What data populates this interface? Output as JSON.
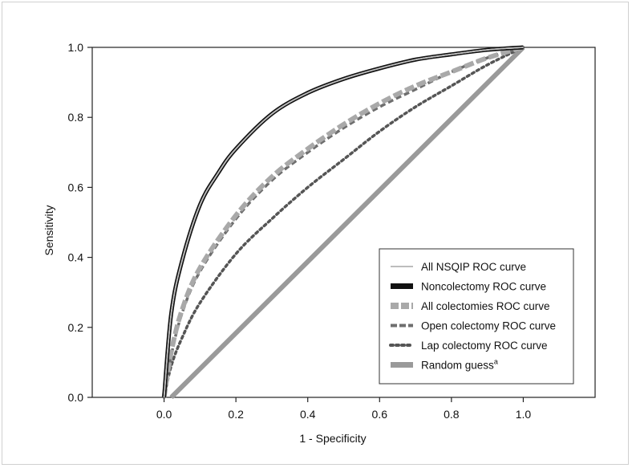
{
  "chart_data": {
    "type": "line",
    "xlabel": "1 - Specificity",
    "ylabel": "Sensitivity",
    "xlim": [
      -0.2,
      1.2
    ],
    "ylim": [
      0.0,
      1.0
    ],
    "xticks": [
      "0.0",
      "0.2",
      "0.4",
      "0.6",
      "0.8",
      "1.0"
    ],
    "yticks": [
      "0.0",
      "0.2",
      "0.4",
      "0.6",
      "0.8",
      "1.0"
    ],
    "legend_position": "bottom-right",
    "series": [
      {
        "name": "All NSQIP ROC curve",
        "color": "#bdbdbd",
        "style": "thin-solid",
        "x": [
          0.0,
          0.02,
          0.05,
          0.1,
          0.15,
          0.2,
          0.3,
          0.4,
          0.5,
          0.6,
          0.7,
          0.8,
          0.9,
          1.0
        ],
        "y": [
          0.0,
          0.24,
          0.39,
          0.55,
          0.64,
          0.71,
          0.81,
          0.87,
          0.91,
          0.94,
          0.965,
          0.98,
          0.993,
          1.0
        ]
      },
      {
        "name": "Noncolectomy ROC curve",
        "color": "#111111",
        "style": "double-black",
        "x": [
          0.0,
          0.02,
          0.05,
          0.1,
          0.15,
          0.2,
          0.3,
          0.4,
          0.5,
          0.6,
          0.7,
          0.8,
          0.9,
          1.0
        ],
        "y": [
          0.0,
          0.24,
          0.39,
          0.55,
          0.64,
          0.71,
          0.81,
          0.87,
          0.91,
          0.94,
          0.965,
          0.98,
          0.993,
          1.0
        ]
      },
      {
        "name": "All colectomies ROC curve",
        "color": "#a9a9a9",
        "style": "thick-dash",
        "x": [
          0.0,
          0.02,
          0.05,
          0.1,
          0.2,
          0.3,
          0.4,
          0.5,
          0.6,
          0.7,
          0.8,
          0.9,
          1.0
        ],
        "y": [
          0.0,
          0.13,
          0.25,
          0.37,
          0.52,
          0.63,
          0.71,
          0.78,
          0.84,
          0.89,
          0.93,
          0.97,
          1.0
        ]
      },
      {
        "name": "Open colectomy ROC curve",
        "color": "#6e6e6e",
        "style": "dash",
        "x": [
          0.0,
          0.02,
          0.05,
          0.1,
          0.2,
          0.3,
          0.4,
          0.5,
          0.6,
          0.7,
          0.8,
          0.9,
          1.0
        ],
        "y": [
          0.0,
          0.12,
          0.24,
          0.36,
          0.51,
          0.62,
          0.7,
          0.77,
          0.83,
          0.88,
          0.93,
          0.97,
          1.0
        ]
      },
      {
        "name": "Lap colectomy ROC curve",
        "color": "#555555",
        "style": "dot",
        "x": [
          0.0,
          0.02,
          0.05,
          0.1,
          0.2,
          0.3,
          0.4,
          0.5,
          0.6,
          0.7,
          0.8,
          0.9,
          1.0
        ],
        "y": [
          0.0,
          0.09,
          0.17,
          0.27,
          0.41,
          0.51,
          0.6,
          0.68,
          0.76,
          0.83,
          0.89,
          0.95,
          1.0
        ]
      },
      {
        "name": "Random guess",
        "name_sup": "a",
        "color": "#9a9a9a",
        "style": "thick-solid",
        "x": [
          0.02,
          1.0
        ],
        "y": [
          0.0,
          1.0
        ]
      }
    ]
  }
}
